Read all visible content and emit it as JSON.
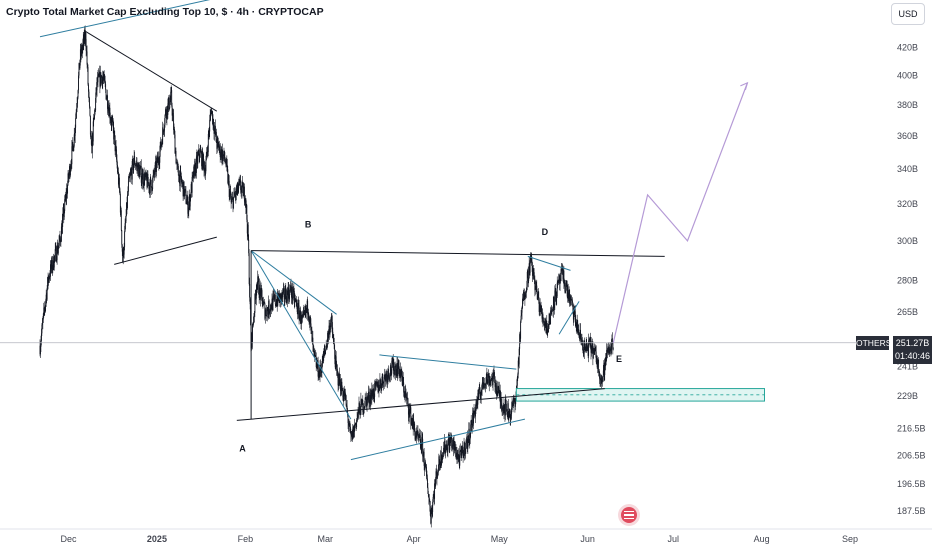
{
  "header": {
    "title": "Crypto Total Market Cap Excluding Top 10, $ · 4h · CRYPTOCAP",
    "currency": "USD"
  },
  "last_price": {
    "symbol": "OTHERS",
    "value": "251.27B",
    "countdown": "01:40:46"
  },
  "colors": {
    "background": "#ffffff",
    "candles": "#131722",
    "text": "#131722",
    "axis_text": "#434651",
    "blue_line": "#2f7ea0",
    "black_line": "#131722",
    "projection": "#b59ad6",
    "zone_border": "#26a69a",
    "zone_fill": "#e0f5f2",
    "price_line": "#b2b5be",
    "tag_bg": "#2a2e39"
  },
  "chart_data": {
    "type": "candlestick",
    "title": "Crypto Total Market Cap Excluding Top 10, $ · 4h · CRYPTOCAP",
    "y_scale": "log",
    "y_unit": "B",
    "ylim": [
      182,
      450
    ],
    "xlim": [
      "2024-11-21",
      "2025-09-15"
    ],
    "y_ticks": [
      {
        "label": "420B",
        "value": 420
      },
      {
        "label": "400B",
        "value": 400
      },
      {
        "label": "380B",
        "value": 380
      },
      {
        "label": "360B",
        "value": 360
      },
      {
        "label": "340B",
        "value": 340
      },
      {
        "label": "320B",
        "value": 320
      },
      {
        "label": "300B",
        "value": 300
      },
      {
        "label": "280B",
        "value": 280
      },
      {
        "label": "265B",
        "value": 265
      },
      {
        "label": "241B",
        "value": 241
      },
      {
        "label": "229B",
        "value": 229
      },
      {
        "label": "216.5B",
        "value": 216.5
      },
      {
        "label": "206.5B",
        "value": 206.5
      },
      {
        "label": "196.5B",
        "value": 196.5
      },
      {
        "label": "187.5B",
        "value": 187.5
      }
    ],
    "x_ticks": [
      {
        "label": "Dec",
        "date": "2024-12-01",
        "bold": false
      },
      {
        "label": "2025",
        "date": "2025-01-01",
        "bold": true
      },
      {
        "label": "Feb",
        "date": "2025-02-01",
        "bold": false
      },
      {
        "label": "Mar",
        "date": "2025-03-01",
        "bold": false
      },
      {
        "label": "Apr",
        "date": "2025-04-01",
        "bold": false
      },
      {
        "label": "May",
        "date": "2025-05-01",
        "bold": false
      },
      {
        "label": "Jun",
        "date": "2025-06-01",
        "bold": false
      },
      {
        "label": "Jul",
        "date": "2025-07-01",
        "bold": false
      },
      {
        "label": "Aug",
        "date": "2025-08-01",
        "bold": false
      },
      {
        "label": "Sep",
        "date": "2025-09-01",
        "bold": false
      }
    ],
    "price_path": [
      [
        "2024-11-21",
        250
      ],
      [
        "2024-11-24",
        282
      ],
      [
        "2024-11-28",
        300
      ],
      [
        "2024-12-01",
        335
      ],
      [
        "2024-12-03",
        360
      ],
      [
        "2024-12-05",
        412
      ],
      [
        "2024-12-07",
        430
      ],
      [
        "2024-12-09",
        350
      ],
      [
        "2024-12-11",
        395
      ],
      [
        "2024-12-13",
        400
      ],
      [
        "2024-12-15",
        380
      ],
      [
        "2024-12-17",
        360
      ],
      [
        "2024-12-19",
        325
      ],
      [
        "2024-12-20",
        290
      ],
      [
        "2024-12-22",
        330
      ],
      [
        "2024-12-24",
        345
      ],
      [
        "2024-12-27",
        335
      ],
      [
        "2024-12-30",
        330
      ],
      [
        "2025-01-02",
        350
      ],
      [
        "2025-01-04",
        375
      ],
      [
        "2025-01-06",
        385
      ],
      [
        "2025-01-08",
        340
      ],
      [
        "2025-01-10",
        330
      ],
      [
        "2025-01-12",
        318
      ],
      [
        "2025-01-14",
        338
      ],
      [
        "2025-01-16",
        350
      ],
      [
        "2025-01-18",
        340
      ],
      [
        "2025-01-20",
        378
      ],
      [
        "2025-01-22",
        355
      ],
      [
        "2025-01-25",
        345
      ],
      [
        "2025-01-27",
        320
      ],
      [
        "2025-01-30",
        330
      ],
      [
        "2025-02-01",
        325
      ],
      [
        "2025-02-02",
        300
      ],
      [
        "2025-02-03",
        250
      ],
      [
        "2025-02-05",
        280
      ],
      [
        "2025-02-08",
        265
      ],
      [
        "2025-02-11",
        270
      ],
      [
        "2025-02-14",
        272
      ],
      [
        "2025-02-17",
        275
      ],
      [
        "2025-02-19",
        268
      ],
      [
        "2025-02-21",
        260
      ],
      [
        "2025-02-23",
        268
      ],
      [
        "2025-02-25",
        245
      ],
      [
        "2025-02-27",
        238
      ],
      [
        "2025-03-01",
        248
      ],
      [
        "2025-03-03",
        262
      ],
      [
        "2025-03-05",
        238
      ],
      [
        "2025-03-08",
        228
      ],
      [
        "2025-03-10",
        212
      ],
      [
        "2025-03-13",
        224
      ],
      [
        "2025-03-16",
        228
      ],
      [
        "2025-03-19",
        232
      ],
      [
        "2025-03-22",
        237
      ],
      [
        "2025-03-25",
        241
      ],
      [
        "2025-03-27",
        240
      ],
      [
        "2025-03-30",
        225
      ],
      [
        "2025-04-02",
        213
      ],
      [
        "2025-04-04",
        210
      ],
      [
        "2025-04-06",
        195
      ],
      [
        "2025-04-07",
        186
      ],
      [
        "2025-04-09",
        200
      ],
      [
        "2025-04-11",
        208
      ],
      [
        "2025-04-14",
        212
      ],
      [
        "2025-04-17",
        205
      ],
      [
        "2025-04-20",
        212
      ],
      [
        "2025-04-23",
        226
      ],
      [
        "2025-04-26",
        236
      ],
      [
        "2025-04-29",
        236
      ],
      [
        "2025-05-02",
        226
      ],
      [
        "2025-05-05",
        222
      ],
      [
        "2025-05-07",
        230
      ],
      [
        "2025-05-09",
        268
      ],
      [
        "2025-05-12",
        290
      ],
      [
        "2025-05-14",
        275
      ],
      [
        "2025-05-16",
        263
      ],
      [
        "2025-05-18",
        258
      ],
      [
        "2025-05-20",
        270
      ],
      [
        "2025-05-23",
        283
      ],
      [
        "2025-05-26",
        270
      ],
      [
        "2025-05-29",
        255
      ],
      [
        "2025-05-31",
        248
      ],
      [
        "2025-06-02",
        250
      ],
      [
        "2025-06-04",
        245
      ],
      [
        "2025-06-06",
        235
      ],
      [
        "2025-06-08",
        248
      ],
      [
        "2025-06-10",
        251.27
      ]
    ],
    "drawings": {
      "channel_upper": {
        "points": [
          [
            "2024-11-21",
            428
          ],
          [
            "2025-02-15",
            470
          ]
        ],
        "style": "blue"
      },
      "triangle1": [
        {
          "points": [
            [
              "2024-12-07",
              432
            ],
            [
              "2025-01-22",
              376
            ]
          ],
          "style": "black"
        },
        {
          "points": [
            [
              "2024-12-17",
              288
            ],
            [
              "2025-01-22",
              302
            ]
          ],
          "style": "black"
        }
      ],
      "abc_triangle": [
        {
          "points": [
            [
              "2025-02-03",
              295
            ],
            [
              "2025-03-05",
              264
            ]
          ],
          "style": "blue"
        },
        {
          "points": [
            [
              "2025-02-03",
              295
            ],
            [
              "2025-03-10",
              220
            ]
          ],
          "style": "blue"
        },
        {
          "points": [
            [
              "2025-02-03",
              295
            ],
            [
              "2025-02-03",
              220
            ]
          ],
          "style": "black"
        }
      ],
      "trendline_bottom": {
        "points": [
          [
            "2025-01-29",
            219.5
          ],
          [
            "2025-06-07",
            232
          ]
        ],
        "style": "black"
      },
      "triangle2": [
        {
          "points": [
            [
              "2025-03-20",
              246
            ],
            [
              "2025-05-07",
              240
            ]
          ],
          "style": "blue"
        },
        {
          "points": [
            [
              "2025-03-10",
              205
            ],
            [
              "2025-05-10",
              220
            ]
          ],
          "style": "blue"
        }
      ],
      "resistance_bd": {
        "points": [
          [
            "2025-02-03",
            295
          ],
          [
            "2025-06-28",
            292
          ]
        ],
        "style": "black"
      },
      "d_wedge": [
        {
          "points": [
            [
              "2025-05-11",
              292
            ],
            [
              "2025-05-26",
              285
            ]
          ],
          "style": "blue"
        },
        {
          "points": [
            [
              "2025-05-22",
              255
            ],
            [
              "2025-05-29",
              270
            ]
          ],
          "style": "blue"
        }
      ],
      "projection": {
        "points": [
          [
            "2025-06-10",
            251.27
          ],
          [
            "2025-06-22",
            325
          ],
          [
            "2025-07-06",
            300
          ],
          [
            "2025-07-27",
            395
          ]
        ],
        "style": "projection"
      },
      "support_zone": {
        "x": [
          "2025-05-07",
          "2025-08-02"
        ],
        "y": [
          227,
          232
        ]
      }
    },
    "wave_labels": [
      {
        "text": "A",
        "date": "2025-01-31",
        "value": 208
      },
      {
        "text": "B",
        "date": "2025-02-23",
        "value": 307
      },
      {
        "text": "D",
        "date": "2025-05-17",
        "value": 303
      },
      {
        "text": "E",
        "date": "2025-06-12",
        "value": 243
      }
    ]
  }
}
